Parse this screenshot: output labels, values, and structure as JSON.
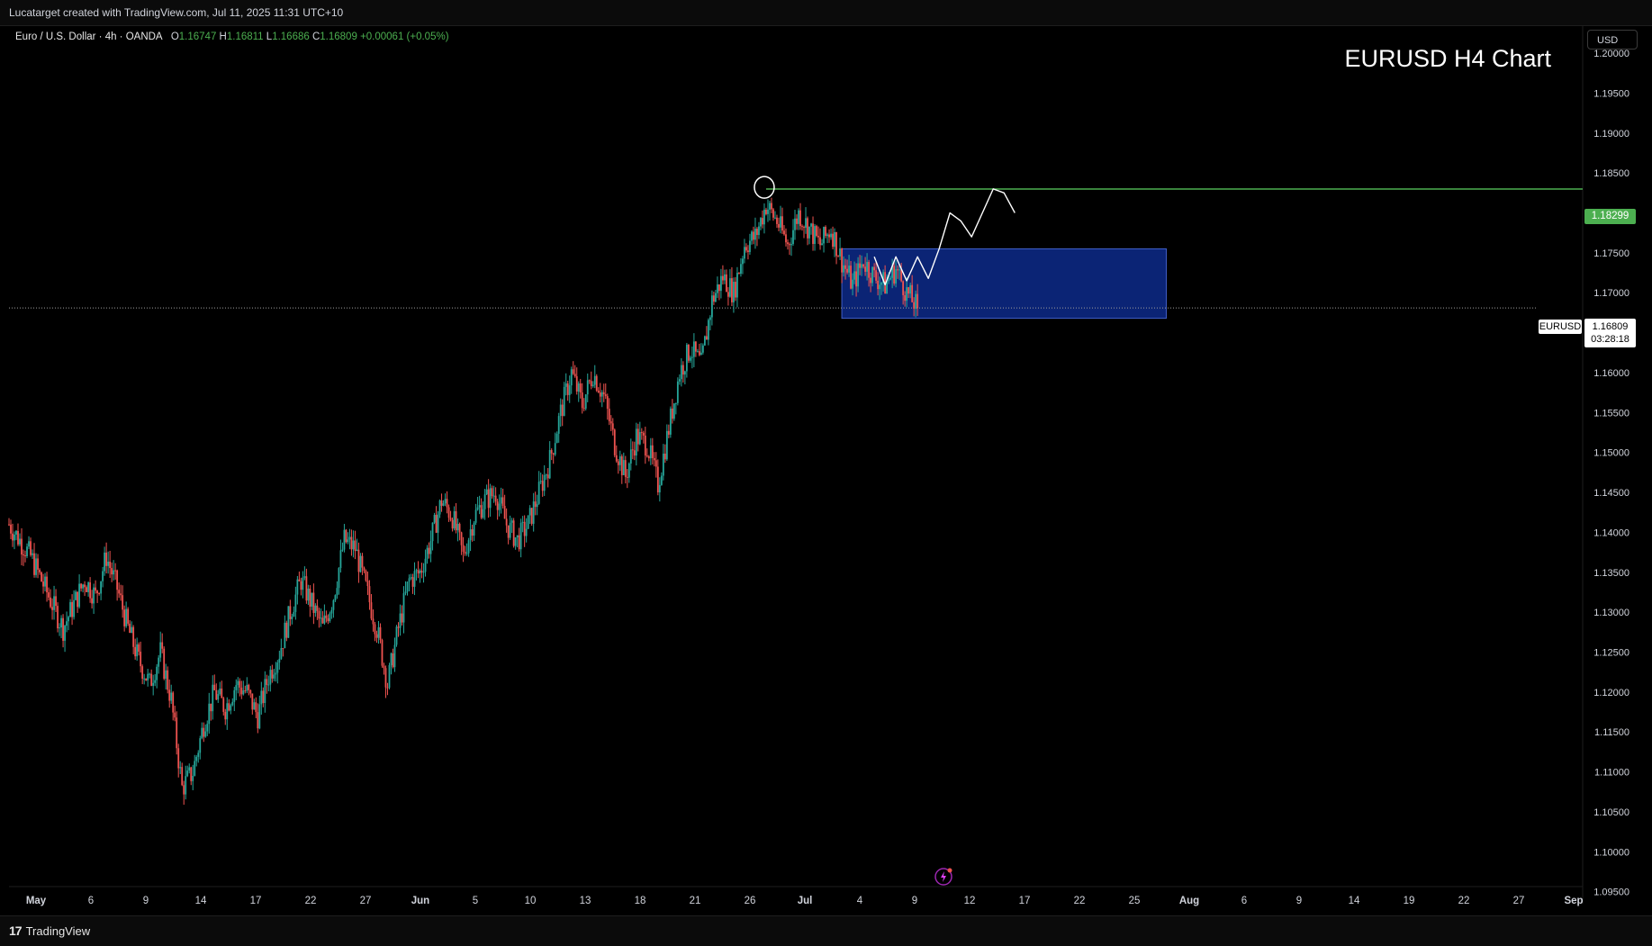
{
  "header": {
    "text": "Lucatarget created with TradingView.com, Jul 11, 2025 11:31 UTC+10"
  },
  "legend": {
    "symbol": "Euro / U.S. Dollar · 4h · OANDA",
    "o_label": "O",
    "o_value": "1.16747",
    "h_label": "H",
    "h_value": "1.16811",
    "l_label": "L",
    "l_value": "1.16686",
    "c_label": "C",
    "c_value": "1.16809",
    "change": "+0.00061 (+0.05%)"
  },
  "currency_button": "USD",
  "level_tag": "1.18299",
  "current_price": {
    "symbol": "EURUSD",
    "price": "1.16809",
    "countdown": "03:28:18"
  },
  "footer": {
    "logo_text": "TradingView"
  },
  "colors": {
    "up": "#26a69a",
    "down": "#ef5350",
    "level_line": "#4caf50",
    "zone_fill": "#0d2a8a",
    "background": "#000000"
  },
  "chart_data": {
    "type": "candlestick",
    "title": "EURUSD H4 Chart",
    "ylim": [
      1.0935,
      1.2035
    ],
    "y_ticks": [
      "1.20000",
      "1.19500",
      "1.19000",
      "1.18500",
      "1.18000",
      "1.17500",
      "1.17000",
      "1.16500",
      "1.16000",
      "1.15500",
      "1.15000",
      "1.14500",
      "1.14000",
      "1.13500",
      "1.13000",
      "1.12500",
      "1.12000",
      "1.11500",
      "1.11000",
      "1.10500",
      "1.10000",
      "1.09500"
    ],
    "x_ticks": [
      "May",
      "6",
      "9",
      "14",
      "17",
      "22",
      "27",
      "Jun",
      "5",
      "10",
      "13",
      "18",
      "21",
      "26",
      "Jul",
      "4",
      "9",
      "12",
      "17",
      "22",
      "25",
      "Aug",
      "6",
      "9",
      "14",
      "19",
      "22",
      "27",
      "Sep"
    ],
    "price_path": [
      [
        0,
        1.141
      ],
      [
        2,
        1.137
      ],
      [
        4,
        1.131
      ],
      [
        5,
        1.128
      ],
      [
        6,
        1.131
      ],
      [
        7,
        1.134
      ],
      [
        8,
        1.132
      ],
      [
        9,
        1.137
      ],
      [
        10,
        1.133
      ],
      [
        11,
        1.128
      ],
      [
        12,
        1.124
      ],
      [
        13,
        1.121
      ],
      [
        14,
        1.125
      ],
      [
        15,
        1.119
      ],
      [
        16,
        1.108
      ],
      [
        17,
        1.11
      ],
      [
        18,
        1.116
      ],
      [
        19,
        1.12
      ],
      [
        20,
        1.118
      ],
      [
        21,
        1.121
      ],
      [
        22,
        1.12
      ],
      [
        23,
        1.117
      ],
      [
        24,
        1.122
      ],
      [
        25,
        1.125
      ],
      [
        26,
        1.13
      ],
      [
        27,
        1.134
      ],
      [
        28,
        1.131
      ],
      [
        29,
        1.128
      ],
      [
        30,
        1.132
      ],
      [
        31,
        1.139
      ],
      [
        32,
        1.138
      ],
      [
        33,
        1.133
      ],
      [
        34,
        1.128
      ],
      [
        35,
        1.121
      ],
      [
        36,
        1.128
      ],
      [
        37,
        1.134
      ],
      [
        38,
        1.135
      ],
      [
        39,
        1.139
      ],
      [
        40,
        1.144
      ],
      [
        41,
        1.142
      ],
      [
        42,
        1.137
      ],
      [
        43,
        1.142
      ],
      [
        44,
        1.144
      ],
      [
        45,
        1.145
      ],
      [
        46,
        1.141
      ],
      [
        47,
        1.139
      ],
      [
        48,
        1.141
      ],
      [
        49,
        1.145
      ],
      [
        50,
        1.149
      ],
      [
        51,
        1.155
      ],
      [
        52,
        1.16
      ],
      [
        53,
        1.156
      ],
      [
        54,
        1.16
      ],
      [
        55,
        1.157
      ],
      [
        56,
        1.151
      ],
      [
        57,
        1.147
      ],
      [
        58,
        1.152
      ],
      [
        59,
        1.151
      ],
      [
        60,
        1.146
      ],
      [
        61,
        1.153
      ],
      [
        62,
        1.16
      ],
      [
        63,
        1.163
      ],
      [
        64,
        1.161
      ],
      [
        65,
        1.169
      ],
      [
        66,
        1.172
      ],
      [
        67,
        1.17
      ],
      [
        68,
        1.176
      ],
      [
        69,
        1.177
      ],
      [
        70,
        1.181
      ],
      [
        71,
        1.179
      ],
      [
        72,
        1.176
      ],
      [
        73,
        1.18
      ],
      [
        74,
        1.178
      ],
      [
        75,
        1.176
      ],
      [
        76,
        1.178
      ],
      [
        77,
        1.174
      ],
      [
        78,
        1.171
      ],
      [
        79,
        1.174
      ],
      [
        80,
        1.172
      ],
      [
        81,
        1.171
      ],
      [
        82,
        1.173
      ],
      [
        83,
        1.17
      ],
      [
        84,
        1.1681
      ]
    ],
    "horizontal_level": {
      "price": 1.18299,
      "from_day": 70
    },
    "demand_zone": {
      "price_top": 1.1755,
      "price_bottom": 1.1668,
      "from_day": 77,
      "to_day": 107
    },
    "projection_path": [
      [
        80,
        1.1745
      ],
      [
        81,
        1.171
      ],
      [
        82,
        1.1745
      ],
      [
        83,
        1.1715
      ],
      [
        84,
        1.1745
      ],
      [
        85,
        1.1718
      ],
      [
        86,
        1.1755
      ],
      [
        87,
        1.18
      ],
      [
        88,
        1.179
      ],
      [
        89,
        1.177
      ],
      [
        90,
        1.18
      ],
      [
        91,
        1.183
      ],
      [
        92,
        1.1825
      ],
      [
        93,
        1.18
      ]
    ],
    "swing_high_marker": {
      "day": 70,
      "price": 1.1832
    },
    "x_range_days": [
      0,
      145
    ]
  }
}
